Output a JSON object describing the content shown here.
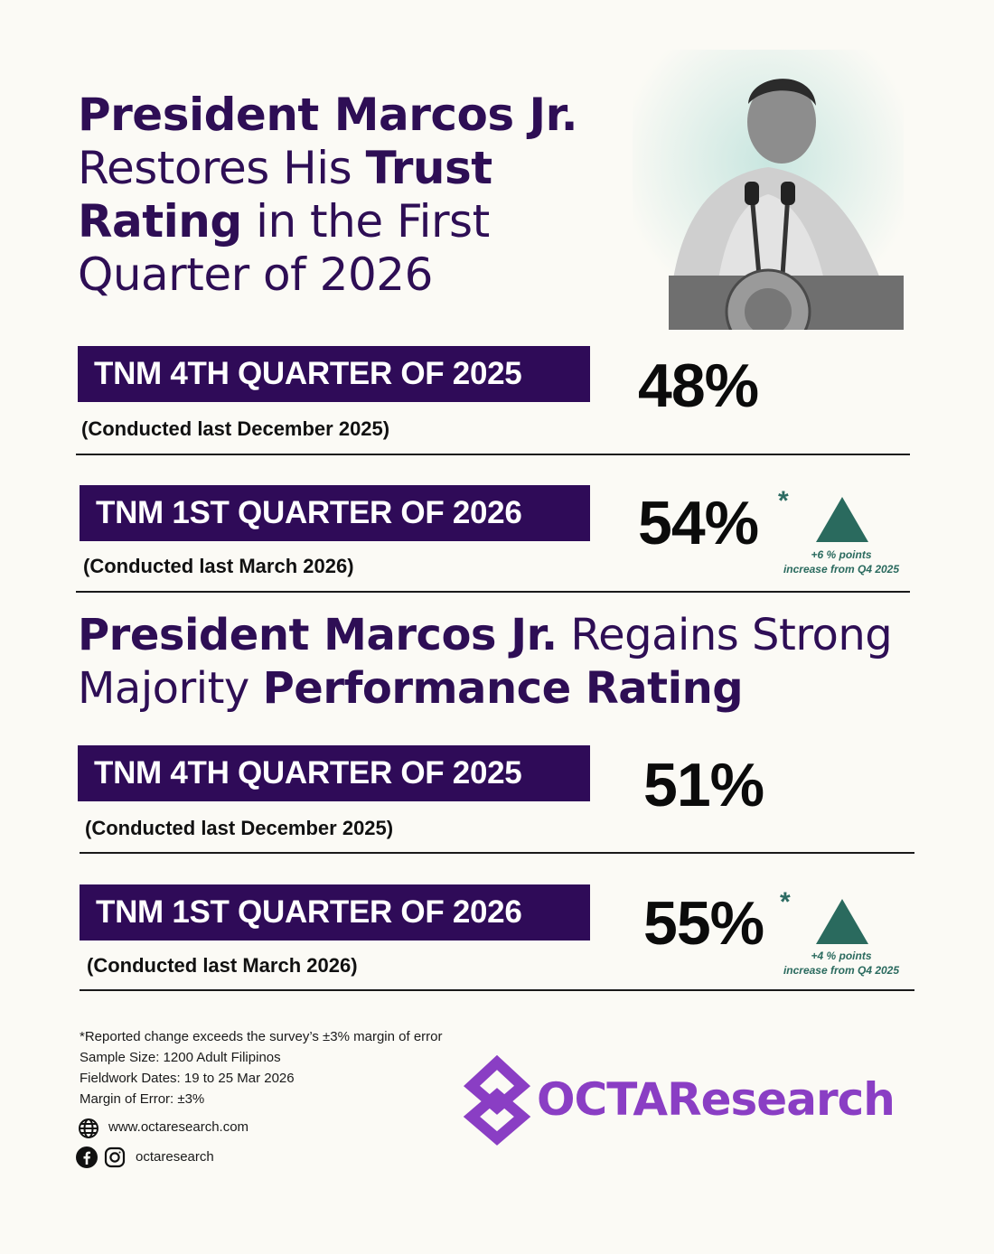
{
  "headline_trust": {
    "p1": "President Marcos Jr.",
    "p2": "Restores His ",
    "p3": "Trust",
    "p4": "Rating",
    "p5": " in the First",
    "p6": "Quarter of 2026"
  },
  "trust": [
    {
      "label": "TNM 4TH QUARTER OF 2025",
      "conducted": "(Conducted last December 2025)",
      "value": "48%",
      "star": "",
      "change": "",
      "change_note": ""
    },
    {
      "label": "TNM 1ST QUARTER OF 2026",
      "conducted": "(Conducted last March 2026)",
      "value": "54%",
      "star": "*",
      "change": "+6 % points",
      "change_note": "increase from Q4 2025"
    }
  ],
  "headline_performance": {
    "p1": "President Marcos Jr.",
    "p2": " Regains Strong",
    "p3": "Majority ",
    "p4": "Performance Rating"
  },
  "performance": [
    {
      "label": "TNM 4TH QUARTER OF 2025",
      "conducted": "(Conducted last December 2025)",
      "value": "51%",
      "star": "",
      "change": "",
      "change_note": ""
    },
    {
      "label": "TNM 1ST QUARTER OF 2026",
      "conducted": "(Conducted last March 2026)",
      "value": "55%",
      "star": "*",
      "change": "+4 % points",
      "change_note": "increase from Q4 2025"
    }
  ],
  "footer": {
    "note": "*Reported change exceeds the survey’s ±3% margin of error",
    "sample": "Sample Size: 1200 Adult Filipinos",
    "fieldwork": "Fieldwork Dates: 19 to 25 Mar 2026",
    "moe": "Margin of Error: ±3%",
    "website": "www.octaresearch.com",
    "social": "octaresearch"
  },
  "logo": {
    "text": "OCTAResearch"
  },
  "colors": {
    "purple": "#2f0b58",
    "teal": "#2a6a5e",
    "logo": "#8a3ec4"
  },
  "icons": [
    "globe-icon",
    "facebook-icon",
    "instagram-icon",
    "up-triangle-icon"
  ]
}
